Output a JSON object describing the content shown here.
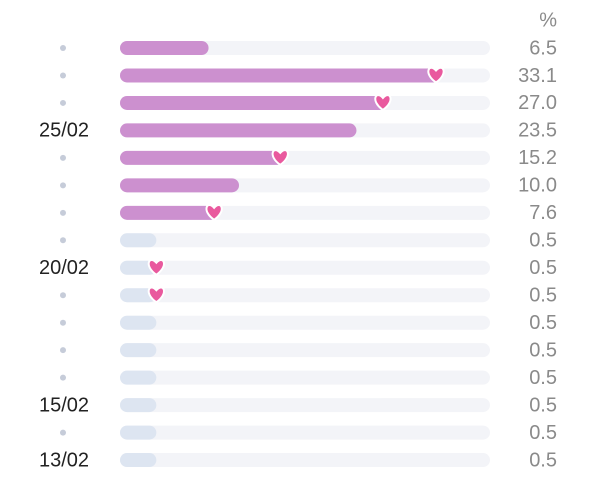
{
  "chart_data": {
    "type": "bar",
    "orientation": "horizontal",
    "unit": "%",
    "categories": [
      null,
      null,
      null,
      "25/02",
      null,
      null,
      null,
      null,
      "20/02",
      null,
      null,
      null,
      null,
      "15/02",
      null,
      "13/02"
    ],
    "values": [
      6.5,
      33.1,
      27.0,
      23.5,
      15.2,
      10.0,
      7.6,
      0.5,
      0.5,
      0.5,
      0.5,
      0.5,
      0.5,
      0.5,
      0.5,
      0.5
    ],
    "value_labels": [
      "6.5",
      "33.1",
      "27.0",
      "23.5",
      "15.2",
      "10.0",
      "7.6",
      "0.5",
      "0.5",
      "0.5",
      "0.5",
      "0.5",
      "0.5",
      "0.5",
      "0.5",
      "0.5"
    ],
    "colors": [
      "#cc90cf",
      "#cc90cf",
      "#cc90cf",
      "#cc90cf",
      "#cc90cf",
      "#cc90cf",
      "#cc90cf",
      "#dde5f1",
      "#dde5f1",
      "#dde5f1",
      "#dde5f1",
      "#dde5f1",
      "#dde5f1",
      "#dde5f1",
      "#dde5f1",
      "#dde5f1"
    ],
    "hearts": [
      false,
      true,
      true,
      false,
      true,
      false,
      true,
      false,
      true,
      true,
      false,
      false,
      false,
      false,
      false,
      false
    ],
    "heart_color": "#e9599e",
    "track_color": "#f3f4f8"
  }
}
